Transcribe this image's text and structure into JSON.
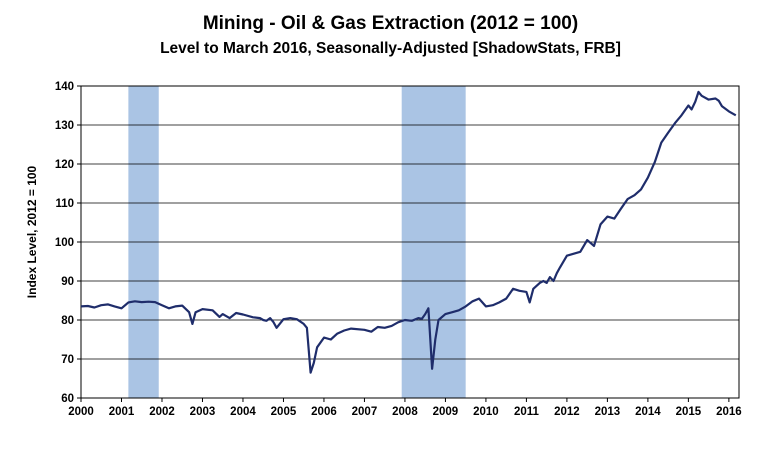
{
  "chart_data": {
    "type": "line",
    "title": "Mining -  Oil & Gas Extraction (2012 = 100)",
    "subtitle": "Level to March 2016, Seasonally-Adjusted [ShadowStats, FRB]",
    "xlabel": "",
    "ylabel": "Index Level, 2012 = 100",
    "xlim": [
      2000,
      2016.25
    ],
    "ylim": [
      60,
      140
    ],
    "x_ticks": [
      "2000",
      "2001",
      "2002",
      "2003",
      "2004",
      "2005",
      "2006",
      "2007",
      "2008",
      "2009",
      "2010",
      "2011",
      "2012",
      "2013",
      "2014",
      "2015",
      "2016"
    ],
    "y_ticks": [
      60,
      70,
      80,
      90,
      100,
      110,
      120,
      130,
      140
    ],
    "grid": "horizontal",
    "legend": "none",
    "line_color": "#1f2d6b",
    "recession_color": "#aac4e4",
    "recessions": [
      [
        2001.17,
        2001.92
      ],
      [
        2007.92,
        2009.5
      ]
    ],
    "series": [
      {
        "x": [
          2000.0,
          2000.17,
          2000.33,
          2000.5,
          2000.67,
          2000.83,
          2001.0,
          2001.17,
          2001.33,
          2001.5,
          2001.67,
          2001.83,
          2002.0,
          2002.17,
          2002.33,
          2002.5,
          2002.67,
          2002.75,
          2002.83,
          2003.0,
          2003.25,
          2003.42,
          2003.5,
          2003.67,
          2003.83,
          2004.0,
          2004.25,
          2004.42,
          2004.5,
          2004.58,
          2004.67,
          2004.75,
          2004.83,
          2005.0,
          2005.17,
          2005.33,
          2005.5,
          2005.58,
          2005.67,
          2005.75,
          2005.83,
          2006.0,
          2006.17,
          2006.33,
          2006.5,
          2006.67,
          2007.0,
          2007.17,
          2007.33,
          2007.5,
          2007.67,
          2007.83,
          2008.0,
          2008.17,
          2008.33,
          2008.42,
          2008.5,
          2008.58,
          2008.67,
          2008.75,
          2008.83,
          2009.0,
          2009.17,
          2009.33,
          2009.5,
          2009.67,
          2009.83,
          2010.0,
          2010.17,
          2010.33,
          2010.5,
          2010.67,
          2010.83,
          2011.0,
          2011.08,
          2011.17,
          2011.33,
          2011.42,
          2011.5,
          2011.58,
          2011.67,
          2011.75,
          2011.83,
          2012.0,
          2012.17,
          2012.33,
          2012.5,
          2012.67,
          2012.83,
          2013.0,
          2013.17,
          2013.33,
          2013.5,
          2013.67,
          2013.83,
          2014.0,
          2014.17,
          2014.33,
          2014.5,
          2014.67,
          2014.83,
          2015.0,
          2015.08,
          2015.17,
          2015.25,
          2015.33,
          2015.5,
          2015.67,
          2015.75,
          2015.83,
          2016.0,
          2016.17
        ],
        "y": [
          83.5,
          83.6,
          83.2,
          83.8,
          84.0,
          83.5,
          83.0,
          84.5,
          84.8,
          84.6,
          84.7,
          84.6,
          83.8,
          83.0,
          83.5,
          83.7,
          82.0,
          79.0,
          82.0,
          82.8,
          82.5,
          80.8,
          81.5,
          80.5,
          81.8,
          81.4,
          80.7,
          80.5,
          80.0,
          79.8,
          80.5,
          79.5,
          78.0,
          80.2,
          80.5,
          80.2,
          79.0,
          78.0,
          66.5,
          69.0,
          73.0,
          75.5,
          75.0,
          76.5,
          77.3,
          77.8,
          77.5,
          77.0,
          78.2,
          78.0,
          78.5,
          79.4,
          80.0,
          79.8,
          80.5,
          80.3,
          81.5,
          83.0,
          67.5,
          75.0,
          80.0,
          81.5,
          82.0,
          82.5,
          83.5,
          84.8,
          85.5,
          83.5,
          83.8,
          84.5,
          85.5,
          88.0,
          87.5,
          87.2,
          84.5,
          88.0,
          89.5,
          90.0,
          89.5,
          91.0,
          90.0,
          92.0,
          93.5,
          96.5,
          97.0,
          97.5,
          100.5,
          99.0,
          104.5,
          106.5,
          106.0,
          108.5,
          111.0,
          112.0,
          113.5,
          116.5,
          120.5,
          125.5,
          128.0,
          130.5,
          132.5,
          135.0,
          134.0,
          136.0,
          138.5,
          137.5,
          136.5,
          136.8,
          136.2,
          134.8,
          133.5,
          132.5
        ]
      }
    ]
  }
}
